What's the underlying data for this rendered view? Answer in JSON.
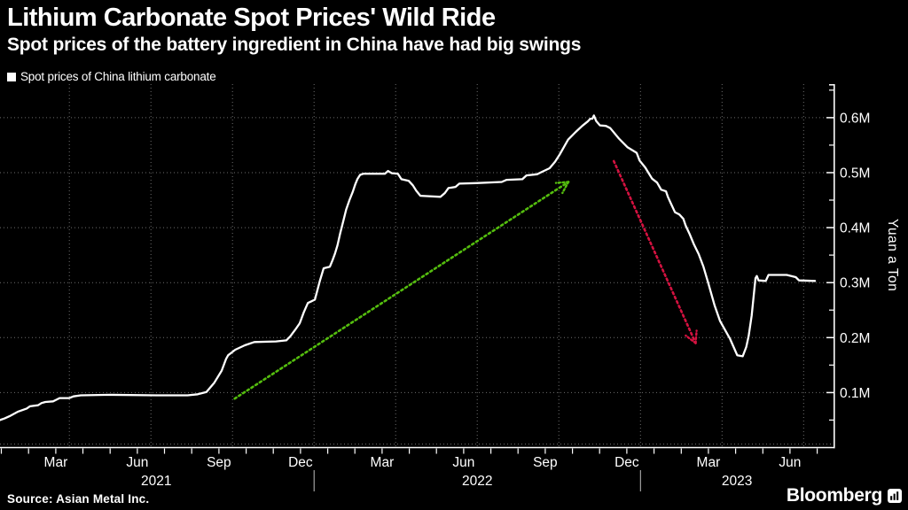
{
  "header": {
    "title": "Lithium Carbonate Spot Prices' Wild Ride",
    "subtitle": "Spot prices of the battery ingredient in China have had big swings"
  },
  "legend": {
    "label": "Spot prices of China lithium carbonate"
  },
  "source": "Source: Asian Metal Inc.",
  "brand": {
    "name": "Bloomberg",
    "icon": "bar-chart-bubble-icon"
  },
  "colors": {
    "background": "#000000",
    "text": "#ffffff",
    "grid": "#6e6e6e",
    "axis": "#ffffff",
    "line": "#ffffff",
    "up_arrow": "#54bd0e",
    "down_arrow": "#d41240"
  },
  "chart_data": {
    "type": "line",
    "title": "Spot prices of China lithium carbonate",
    "ylabel": "Yuan a Ton",
    "x_unit": "months since 2021-01-01 (0 = Jan 1, 2021)",
    "x_range": [
      0.45,
      31.1
    ],
    "y_range": [
      0,
      0.661
    ],
    "grid": "dotted",
    "y_ticks": [
      {
        "v": 0.1,
        "label": "0.1M"
      },
      {
        "v": 0.2,
        "label": "0.2M"
      },
      {
        "v": 0.3,
        "label": "0.3M"
      },
      {
        "v": 0.4,
        "label": "0.4M"
      },
      {
        "v": 0.5,
        "label": "0.5M"
      },
      {
        "v": 0.6,
        "label": "0.6M"
      }
    ],
    "y_minor_ticks": [
      0.05,
      0.15,
      0.25,
      0.35,
      0.45,
      0.55,
      0.65
    ],
    "h_grid_values": [
      0.0065,
      0.1,
      0.2,
      0.3,
      0.4,
      0.5,
      0.6
    ],
    "v_grid_months": [
      3,
      6,
      9,
      12,
      15,
      18,
      21,
      24,
      27,
      30
    ],
    "x_mid_month_ticks": [
      0.5,
      1.5,
      2.5,
      3.5,
      4.5,
      5.5,
      6.5,
      7.5,
      8.5,
      9.5,
      10.5,
      11.5,
      12.5,
      13.5,
      14.5,
      15.5,
      16.5,
      17.5,
      18.5,
      19.5,
      20.5,
      21.5,
      22.5,
      23.5,
      24.5,
      25.5,
      26.5,
      27.5,
      28.5,
      29.5,
      30.5
    ],
    "x_labels": [
      {
        "m": 2.5,
        "label": "Mar"
      },
      {
        "m": 5.5,
        "label": "Jun"
      },
      {
        "m": 8.5,
        "label": "Sep"
      },
      {
        "m": 11.5,
        "label": "Dec"
      },
      {
        "m": 14.5,
        "label": "Mar"
      },
      {
        "m": 17.5,
        "label": "Jun"
      },
      {
        "m": 20.5,
        "label": "Sep"
      },
      {
        "m": 23.5,
        "label": "Dec"
      },
      {
        "m": 26.5,
        "label": "Mar"
      },
      {
        "m": 29.5,
        "label": "Jun"
      }
    ],
    "year_labels": [
      {
        "m": 6.2,
        "label": "2021"
      },
      {
        "m": 18.0,
        "label": "2022"
      },
      {
        "m": 27.55,
        "label": "2023"
      }
    ],
    "year_separators": [
      12,
      24
    ],
    "series": [
      {
        "name": "Spot prices of China lithium carbonate",
        "color": "#ffffff",
        "points": [
          [
            0.45,
            0.05
          ],
          [
            0.62,
            0.053
          ],
          [
            0.8,
            0.057
          ],
          [
            1.1,
            0.065
          ],
          [
            1.43,
            0.071
          ],
          [
            1.55,
            0.075
          ],
          [
            1.85,
            0.077
          ],
          [
            1.98,
            0.081
          ],
          [
            2.12,
            0.083
          ],
          [
            2.4,
            0.084
          ],
          [
            2.52,
            0.087
          ],
          [
            2.64,
            0.09
          ],
          [
            3.0,
            0.09
          ],
          [
            3.15,
            0.093
          ],
          [
            3.42,
            0.095
          ],
          [
            4.5,
            0.096
          ],
          [
            6.2,
            0.095
          ],
          [
            7.35,
            0.095
          ],
          [
            7.72,
            0.097
          ],
          [
            8.04,
            0.101
          ],
          [
            8.33,
            0.118
          ],
          [
            8.6,
            0.14
          ],
          [
            8.76,
            0.161
          ],
          [
            8.84,
            0.168
          ],
          [
            8.97,
            0.173
          ],
          [
            9.1,
            0.178
          ],
          [
            9.45,
            0.186
          ],
          [
            9.8,
            0.192
          ],
          [
            10.6,
            0.193
          ],
          [
            10.98,
            0.195
          ],
          [
            11.12,
            0.202
          ],
          [
            11.3,
            0.214
          ],
          [
            11.47,
            0.226
          ],
          [
            11.62,
            0.246
          ],
          [
            11.77,
            0.263
          ],
          [
            11.9,
            0.266
          ],
          [
            12.03,
            0.269
          ],
          [
            12.12,
            0.286
          ],
          [
            12.21,
            0.303
          ],
          [
            12.35,
            0.326
          ],
          [
            12.58,
            0.329
          ],
          [
            12.68,
            0.341
          ],
          [
            12.77,
            0.353
          ],
          [
            12.86,
            0.368
          ],
          [
            12.96,
            0.39
          ],
          [
            13.07,
            0.411
          ],
          [
            13.18,
            0.433
          ],
          [
            13.3,
            0.45
          ],
          [
            13.42,
            0.465
          ],
          [
            13.51,
            0.478
          ],
          [
            13.59,
            0.488
          ],
          [
            13.69,
            0.496
          ],
          [
            13.82,
            0.498
          ],
          [
            14.6,
            0.498
          ],
          [
            14.72,
            0.503
          ],
          [
            14.86,
            0.499
          ],
          [
            15.08,
            0.498
          ],
          [
            15.21,
            0.488
          ],
          [
            15.48,
            0.485
          ],
          [
            15.63,
            0.477
          ],
          [
            15.76,
            0.467
          ],
          [
            15.91,
            0.458
          ],
          [
            16.65,
            0.456
          ],
          [
            16.81,
            0.463
          ],
          [
            16.94,
            0.472
          ],
          [
            17.2,
            0.474
          ],
          [
            17.34,
            0.48
          ],
          [
            17.95,
            0.481
          ],
          [
            18.9,
            0.483
          ],
          [
            19.08,
            0.487
          ],
          [
            19.66,
            0.488
          ],
          [
            19.81,
            0.495
          ],
          [
            20.2,
            0.497
          ],
          [
            20.36,
            0.501
          ],
          [
            20.66,
            0.508
          ],
          [
            20.86,
            0.52
          ],
          [
            21.03,
            0.533
          ],
          [
            21.19,
            0.547
          ],
          [
            21.34,
            0.56
          ],
          [
            21.62,
            0.574
          ],
          [
            21.86,
            0.585
          ],
          [
            22.06,
            0.593
          ],
          [
            22.16,
            0.598
          ],
          [
            22.23,
            0.598
          ],
          [
            22.29,
            0.604
          ],
          [
            22.37,
            0.594
          ],
          [
            22.51,
            0.586
          ],
          [
            22.73,
            0.585
          ],
          [
            22.89,
            0.581
          ],
          [
            23.21,
            0.562
          ],
          [
            23.53,
            0.546
          ],
          [
            23.86,
            0.536
          ],
          [
            23.97,
            0.522
          ],
          [
            24.18,
            0.509
          ],
          [
            24.28,
            0.501
          ],
          [
            24.43,
            0.489
          ],
          [
            24.61,
            0.482
          ],
          [
            24.76,
            0.469
          ],
          [
            24.94,
            0.466
          ],
          [
            25.01,
            0.456
          ],
          [
            25.11,
            0.445
          ],
          [
            25.27,
            0.428
          ],
          [
            25.43,
            0.424
          ],
          [
            25.58,
            0.416
          ],
          [
            25.66,
            0.404
          ],
          [
            25.81,
            0.388
          ],
          [
            25.97,
            0.369
          ],
          [
            26.14,
            0.352
          ],
          [
            26.31,
            0.33
          ],
          [
            26.49,
            0.3
          ],
          [
            26.73,
            0.258
          ],
          [
            26.93,
            0.23
          ],
          [
            27.09,
            0.216
          ],
          [
            27.29,
            0.198
          ],
          [
            27.47,
            0.178
          ],
          [
            27.56,
            0.168
          ],
          [
            27.76,
            0.166
          ],
          [
            27.89,
            0.183
          ],
          [
            27.98,
            0.203
          ],
          [
            28.09,
            0.24
          ],
          [
            28.17,
            0.278
          ],
          [
            28.23,
            0.308
          ],
          [
            28.28,
            0.312
          ],
          [
            28.34,
            0.304
          ],
          [
            28.61,
            0.303
          ],
          [
            28.71,
            0.314
          ],
          [
            29.38,
            0.314
          ],
          [
            29.71,
            0.31
          ],
          [
            29.83,
            0.304
          ],
          [
            30.42,
            0.303
          ]
        ]
      }
    ],
    "annotations": [
      {
        "name": "surge-arrow",
        "type": "arrow",
        "style": "dotted",
        "color": "#54bd0e",
        "from": [
          9.08,
          0.089
        ],
        "to": [
          21.35,
          0.483
        ]
      },
      {
        "name": "plunge-arrow",
        "type": "arrow",
        "style": "dotted",
        "color": "#d41240",
        "from": [
          23.02,
          0.521
        ],
        "to": [
          26.03,
          0.19
        ]
      }
    ]
  }
}
